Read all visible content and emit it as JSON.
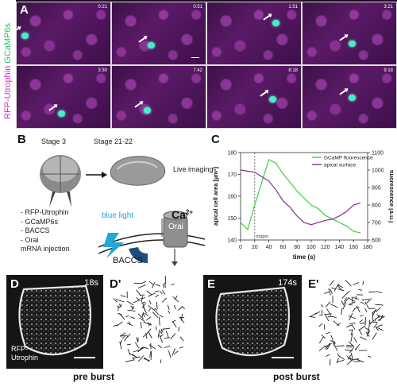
{
  "panel_a": {
    "letter": "A",
    "label_red": "RFP-Utrophin",
    "label_green": "GCaMP6s",
    "times": [
      "0:21",
      "0:51",
      "1:51",
      "3:21",
      "3:30",
      "7:42",
      "8:18",
      "9:18"
    ]
  },
  "panel_b": {
    "letter": "B",
    "stage_left": "Stage 3",
    "stage_right": "Stage 21-22",
    "live_imaging": "Live imaging",
    "injections": [
      "- RFP-Utrophin",
      "- GCaMP6s",
      "- BACCS",
      "- Orai",
      "mRNA injection"
    ],
    "blue_light": "blue light",
    "ca": "Ca",
    "ca_sup": "2+",
    "orai": "Orai",
    "baccs": "BACCS"
  },
  "panel_c": {
    "letter": "C",
    "legend_green": "GCaMP fluorescence",
    "legend_purple": "apical surface",
    "trigger": "trigger",
    "colors": {
      "green": "#3cd13c",
      "purple": "#8a2a9a"
    }
  },
  "panels_de": {
    "d": "D",
    "d_time": "18s",
    "d_prime": "D'",
    "e": "E",
    "e_time": "174s",
    "e_prime": "E'",
    "rfp": "RFP-",
    "utrophin": "Utrophin",
    "pre": "pre burst",
    "post": "post burst"
  },
  "chart_data": {
    "type": "line",
    "x": [
      0,
      10,
      20,
      30,
      40,
      50,
      60,
      70,
      80,
      90,
      100,
      110,
      120,
      130,
      140,
      150,
      160,
      170
    ],
    "xlabel": "time (s)",
    "ylabel": "apical cell area [µm²]",
    "y2label": "fluorescence [a.u.]",
    "xlim": [
      0,
      180
    ],
    "ylim": [
      140,
      180
    ],
    "y2lim": [
      600,
      1100
    ],
    "xticks": [
      0,
      20,
      40,
      60,
      80,
      100,
      120,
      140,
      160,
      180
    ],
    "yticks": [
      140,
      150,
      160,
      170,
      180
    ],
    "y2ticks": [
      600,
      700,
      800,
      900,
      1000,
      1100
    ],
    "series": [
      {
        "name": "GCaMP fluorescence",
        "axis": "right",
        "color": "#3cd13c",
        "values": [
          700,
          660,
          800,
          930,
          1060,
          1040,
          980,
          930,
          880,
          840,
          800,
          780,
          740,
          720,
          700,
          680,
          650,
          640
        ]
      },
      {
        "name": "apical surface",
        "axis": "left",
        "color": "#8a2a9a",
        "values": [
          172,
          171.5,
          171,
          169,
          167,
          163,
          158,
          155,
          151,
          148,
          147,
          148,
          149,
          149.5,
          151,
          153,
          156,
          157
        ]
      }
    ],
    "annotations": [
      {
        "x": 20,
        "text": "trigger"
      }
    ]
  }
}
